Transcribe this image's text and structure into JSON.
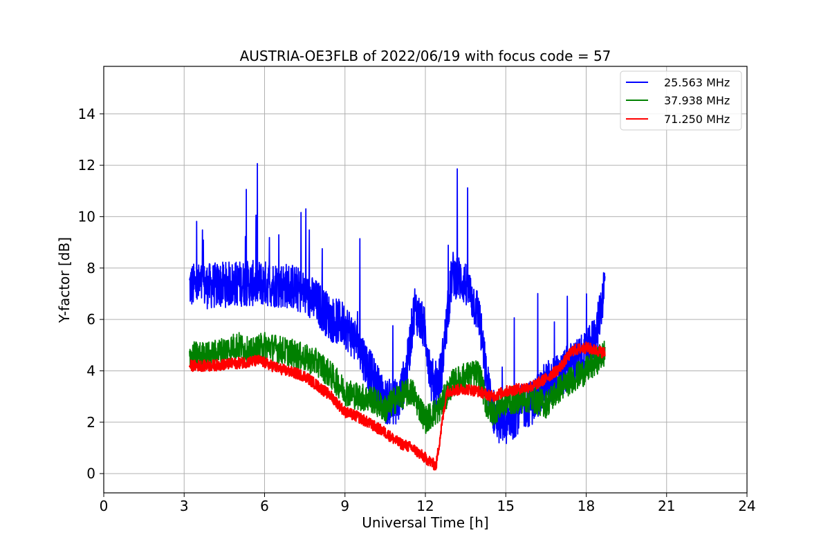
{
  "chart_data": {
    "type": "line",
    "title": "AUSTRIA-OE3FLB of 2022/06/19 with focus code = 57",
    "xlabel": "Universal Time [h]",
    "ylabel": "Y-factor [dB]",
    "xlim": [
      0,
      24
    ],
    "ylim": [
      -0.75,
      15.85
    ],
    "xticks": [
      0,
      3,
      6,
      9,
      12,
      15,
      18,
      21,
      24
    ],
    "yticks": [
      0,
      2,
      4,
      6,
      8,
      10,
      12,
      14
    ],
    "grid": true,
    "legend_position": "top-right",
    "series": [
      {
        "name": "25.563 MHz",
        "color": "#0000ff",
        "noise": 0.9,
        "points": [
          [
            3.2,
            7.3
          ],
          [
            4,
            7.3
          ],
          [
            5,
            7.4
          ],
          [
            6,
            7.4
          ],
          [
            7,
            7.3
          ],
          [
            7.5,
            7.0
          ],
          [
            8,
            6.6
          ],
          [
            8.5,
            6.0
          ],
          [
            9,
            5.8
          ],
          [
            9.5,
            5.0
          ],
          [
            10,
            3.8
          ],
          [
            10.5,
            2.8
          ],
          [
            11,
            2.8
          ],
          [
            11.3,
            4.0
          ],
          [
            11.6,
            6.5
          ],
          [
            12,
            5.5
          ],
          [
            12.3,
            3.0
          ],
          [
            12.6,
            4.0
          ],
          [
            13,
            7.8
          ],
          [
            13.5,
            7.4
          ],
          [
            14,
            6.2
          ],
          [
            14.3,
            3.5
          ],
          [
            14.6,
            2.2
          ],
          [
            15,
            1.9
          ],
          [
            15.5,
            2.5
          ],
          [
            16,
            2.8
          ],
          [
            16.5,
            3.5
          ],
          [
            17,
            3.8
          ],
          [
            17.5,
            4.3
          ],
          [
            18,
            4.6
          ],
          [
            18.4,
            5.5
          ],
          [
            18.7,
            7.5
          ]
        ]
      },
      {
        "name": "37.938 MHz",
        "color": "#008000",
        "noise": 0.55,
        "points": [
          [
            3.2,
            4.6
          ],
          [
            4,
            4.6
          ],
          [
            5,
            5.0
          ],
          [
            5.5,
            4.7
          ],
          [
            6,
            5.0
          ],
          [
            7,
            4.7
          ],
          [
            8,
            4.3
          ],
          [
            8.5,
            3.8
          ],
          [
            9,
            3.2
          ],
          [
            9.5,
            3.0
          ],
          [
            10,
            2.9
          ],
          [
            10.5,
            2.5
          ],
          [
            11,
            3.0
          ],
          [
            11.5,
            3.2
          ],
          [
            12,
            2.1
          ],
          [
            12.5,
            2.5
          ],
          [
            13,
            3.5
          ],
          [
            13.5,
            3.8
          ],
          [
            14,
            3.9
          ],
          [
            14.3,
            2.6
          ],
          [
            14.5,
            2.4
          ],
          [
            15,
            2.8
          ],
          [
            15.5,
            2.9
          ],
          [
            16,
            2.9
          ],
          [
            16.5,
            2.7
          ],
          [
            17,
            3.3
          ],
          [
            17.5,
            3.7
          ],
          [
            18,
            4.0
          ],
          [
            18.5,
            4.5
          ],
          [
            18.7,
            4.7
          ]
        ]
      },
      {
        "name": "71.250 MHz",
        "color": "#ff0000",
        "noise": 0.22,
        "points": [
          [
            3.2,
            4.2
          ],
          [
            4,
            4.2
          ],
          [
            5,
            4.3
          ],
          [
            5.8,
            4.4
          ],
          [
            6.5,
            4.1
          ],
          [
            7.5,
            3.8
          ],
          [
            8,
            3.4
          ],
          [
            8.5,
            3.0
          ],
          [
            9,
            2.4
          ],
          [
            9.5,
            2.2
          ],
          [
            10,
            1.9
          ],
          [
            10.5,
            1.6
          ],
          [
            11,
            1.2
          ],
          [
            11.5,
            1.0
          ],
          [
            12,
            0.6
          ],
          [
            12.4,
            0.3
          ],
          [
            12.6,
            1.8
          ],
          [
            12.8,
            3.2
          ],
          [
            13.5,
            3.3
          ],
          [
            14,
            3.2
          ],
          [
            14.5,
            3.0
          ],
          [
            15,
            3.2
          ],
          [
            15.5,
            3.3
          ],
          [
            16,
            3.4
          ],
          [
            16.5,
            3.7
          ],
          [
            17,
            4.1
          ],
          [
            17.5,
            4.8
          ],
          [
            18,
            4.9
          ],
          [
            18.7,
            4.7
          ]
        ]
      }
    ]
  }
}
